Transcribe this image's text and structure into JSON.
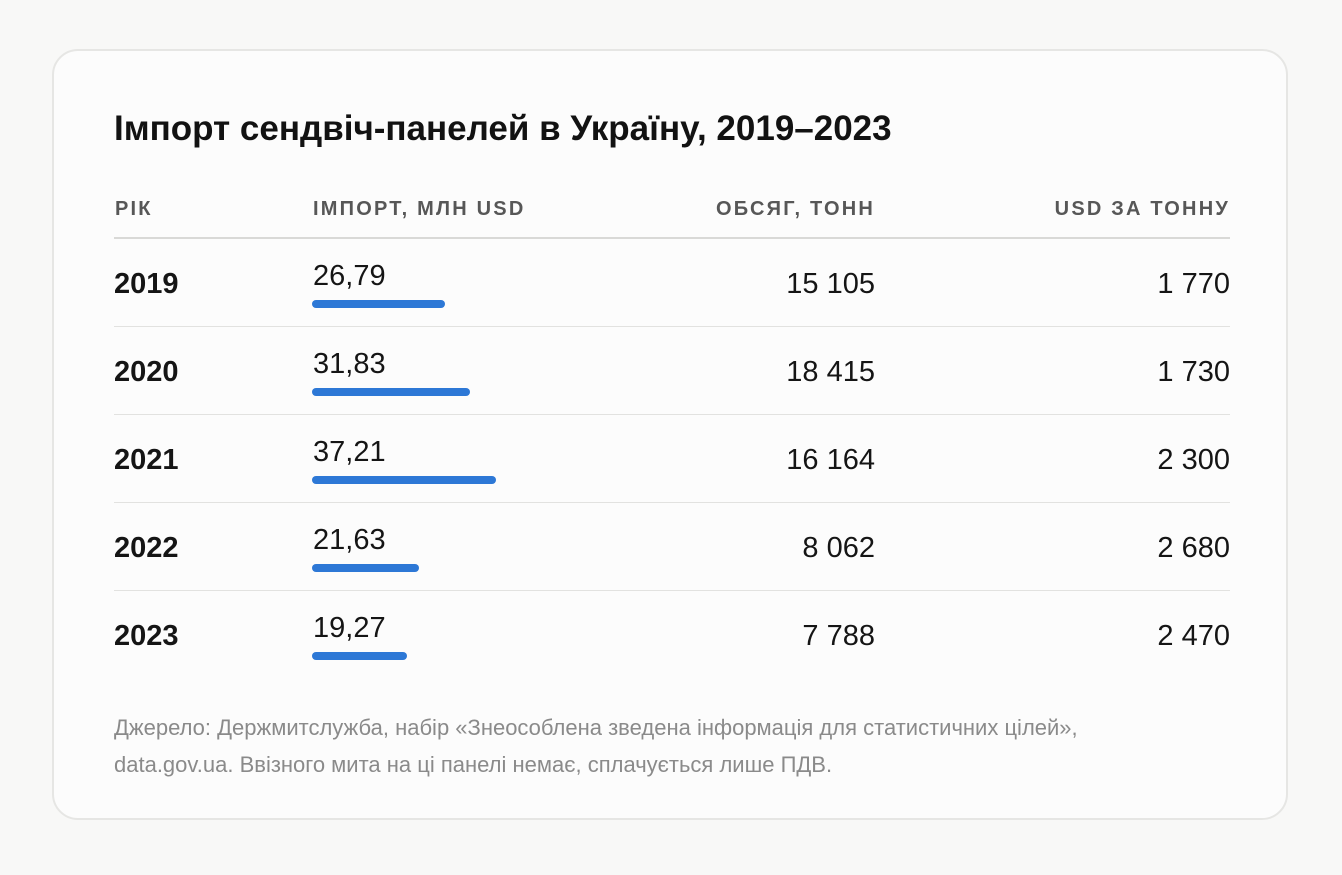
{
  "title": "Імпорт сендвіч-панелей в Україну, 2019–2023",
  "columns": {
    "year": "РІК",
    "import": "ІМПОРТ, МЛН USD",
    "volume": "ОБСЯГ, ТОНН",
    "price": "USD ЗА ТОННУ"
  },
  "rows": [
    {
      "year": "2019",
      "import_label": "26,79",
      "import_value": 26.79,
      "volume": "15 105",
      "price": "1 770"
    },
    {
      "year": "2020",
      "import_label": "31,83",
      "import_value": 31.83,
      "volume": "18 415",
      "price": "1 730"
    },
    {
      "year": "2021",
      "import_label": "37,21",
      "import_value": 37.21,
      "volume": "16 164",
      "price": "2 300"
    },
    {
      "year": "2022",
      "import_label": "21,63",
      "import_value": 21.63,
      "volume": "8 062",
      "price": "2 680"
    },
    {
      "year": "2023",
      "import_label": "19,27",
      "import_value": 19.27,
      "volume": "7 788",
      "price": "2 470"
    }
  ],
  "source": "Джерело: Держмитслужба, набір «Знеособлена зведена інформація для статистичних цілей», data.gov.ua. Ввізного мита на ці панелі немає, сплачується лише ПДВ.",
  "colors": {
    "bar": "#2d78d6",
    "background": "#f8f8f7",
    "card": "#fcfcfc"
  },
  "chart_data": {
    "type": "table",
    "title": "Імпорт сендвіч-панелей в Україну, 2019–2023",
    "columns": [
      "РІК",
      "ІМПОРТ, МЛН USD",
      "ОБСЯГ, ТОНН",
      "USD ЗА ТОННУ"
    ],
    "categories": [
      "2019",
      "2020",
      "2021",
      "2022",
      "2023"
    ],
    "series": [
      {
        "name": "ІМПОРТ, МЛН USD",
        "values": [
          26.79,
          31.83,
          37.21,
          21.63,
          19.27
        ]
      },
      {
        "name": "ОБСЯГ, ТОНН",
        "values": [
          15105,
          18415,
          16164,
          8062,
          7788
        ]
      },
      {
        "name": "USD ЗА ТОННУ",
        "values": [
          1770,
          1730,
          2300,
          2680,
          2470
        ]
      }
    ]
  }
}
